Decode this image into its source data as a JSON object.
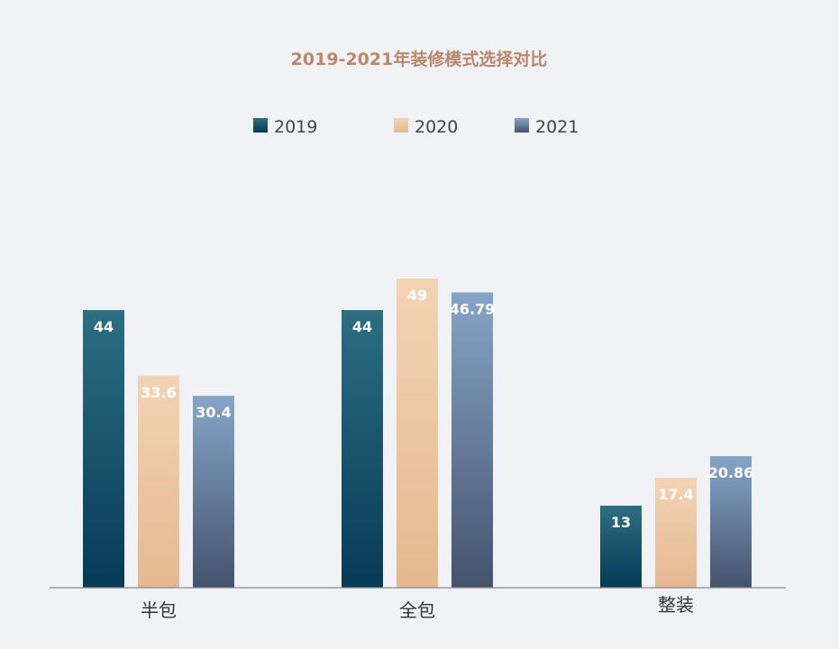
{
  "chart_data": {
    "type": "bar",
    "title": "2019-2021年装修模式选择对比",
    "categories": [
      "半包",
      "全包",
      "整装"
    ],
    "series": [
      {
        "name": "2019",
        "values": [
          44,
          44,
          13
        ],
        "labels": [
          "44",
          "44",
          "13"
        ]
      },
      {
        "name": "2020",
        "values": [
          33.6,
          49,
          17.4
        ],
        "labels": [
          "33.6",
          "49",
          "17.4"
        ]
      },
      {
        "name": "2021",
        "values": [
          30.4,
          46.79,
          20.86
        ],
        "labels": [
          "30.4",
          "46.79",
          "20.86"
        ]
      }
    ],
    "ylim": [
      0,
      57
    ],
    "xlabel": "",
    "ylabel": "",
    "grid": false,
    "legend_position": "top-center"
  },
  "colors": {
    "background": "#f1f2f6",
    "title": "#b9876a",
    "axis": "#8a8a8a",
    "category_label": "#333333",
    "legend_text": "#444444",
    "series": [
      {
        "top": "#2c6e82",
        "bottom": "#053b55",
        "label": "#ffffff"
      },
      {
        "top": "#f3d3b4",
        "bottom": "#e4b991",
        "label": "#ffffff"
      },
      {
        "top": "#86a5c7",
        "bottom": "#44536e",
        "label": "#ffffff"
      }
    ]
  }
}
